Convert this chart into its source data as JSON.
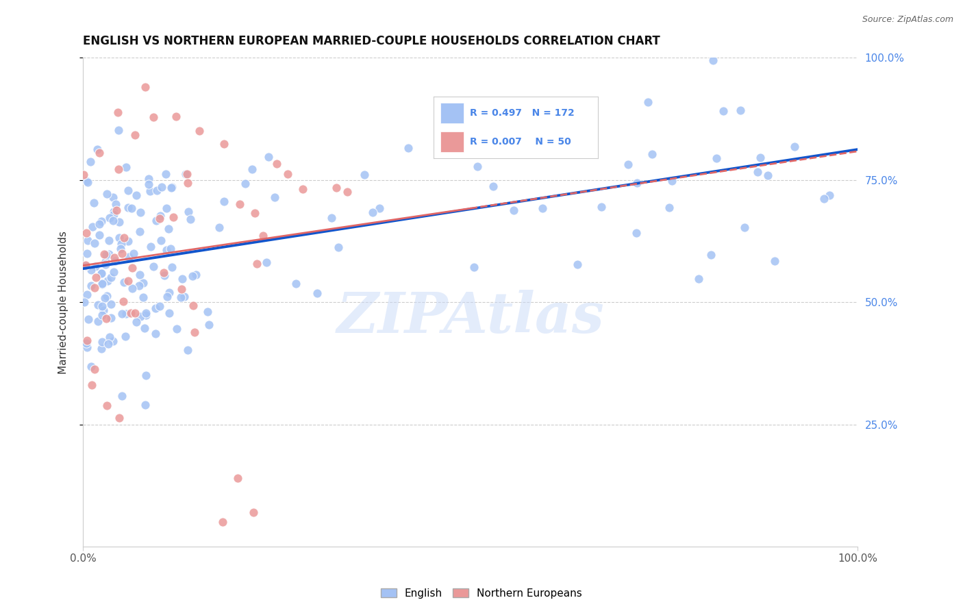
{
  "title": "ENGLISH VS NORTHERN EUROPEAN MARRIED-COUPLE HOUSEHOLDS CORRELATION CHART",
  "source": "Source: ZipAtlas.com",
  "ylabel": "Married-couple Households",
  "english_R": 0.497,
  "english_N": 172,
  "northern_R": 0.007,
  "northern_N": 50,
  "english_color": "#a4c2f4",
  "northern_color": "#ea9999",
  "english_line_color": "#1155cc",
  "northern_line_color": "#e06666",
  "background_color": "#ffffff",
  "grid_color": "#cccccc",
  "right_axis_color": "#4a86e8",
  "watermark_text": "ZIPAtlas",
  "watermark_color": "#c9daf8",
  "xlim": [
    0,
    100
  ],
  "ylim": [
    0,
    100
  ],
  "yticks": [
    25,
    50,
    75,
    100
  ],
  "ytick_labels": [
    "25.0%",
    "50.0%",
    "75.0%",
    "100.0%"
  ],
  "xtick_left": "0.0%",
  "xtick_right": "100.0%"
}
